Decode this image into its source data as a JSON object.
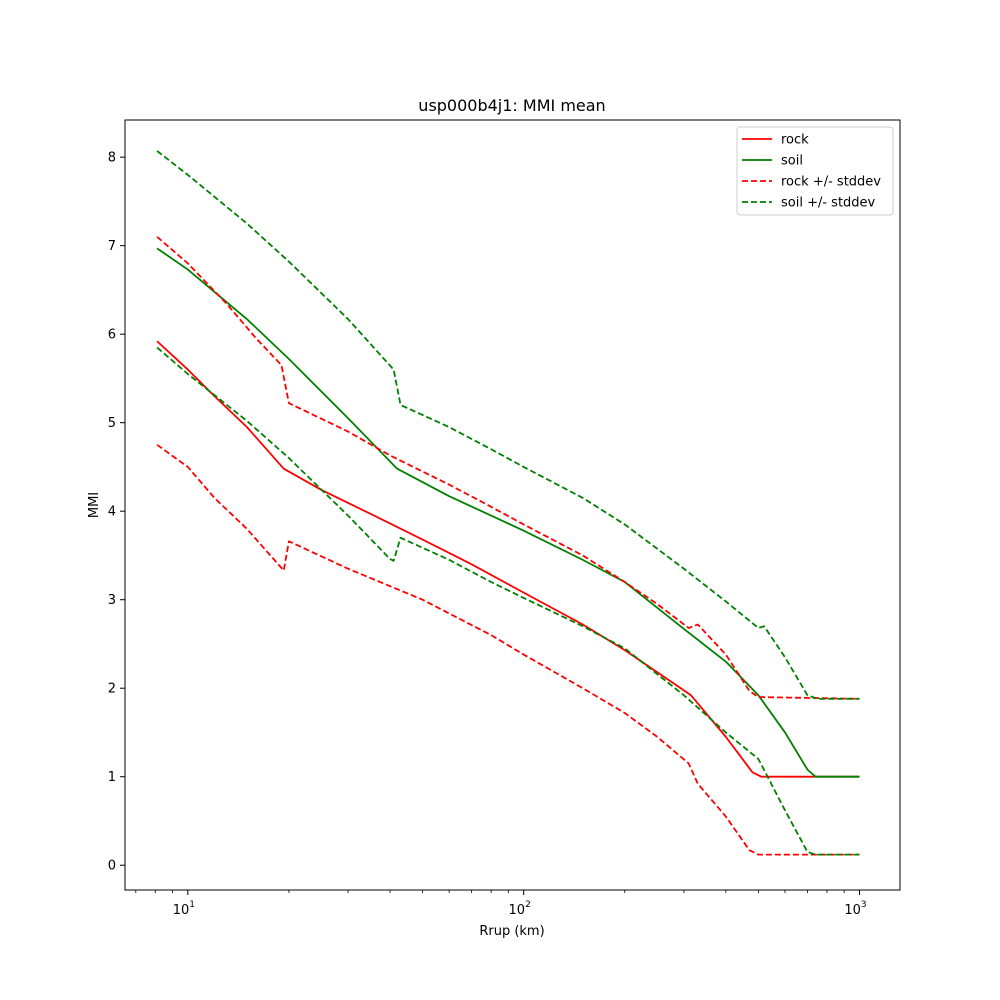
{
  "chart_data": {
    "type": "line",
    "title": "usp000b4j1: MMI mean",
    "xlabel": "Rrup (km)",
    "ylabel": "MMI",
    "xscale": "log",
    "xlim": [
      6.5,
      1320
    ],
    "ylim": [
      -0.28,
      8.42
    ],
    "x_ticks": [
      {
        "value": 10,
        "base": "10",
        "exp": "1"
      },
      {
        "value": 100,
        "base": "10",
        "exp": "2"
      },
      {
        "value": 1000,
        "base": "10",
        "exp": "3"
      }
    ],
    "y_ticks": [
      "0",
      "1",
      "2",
      "3",
      "4",
      "5",
      "6",
      "7",
      "8"
    ],
    "grid": false,
    "legend_position": "top-right",
    "series": [
      {
        "name": "rock",
        "color": "#ff0000",
        "style": "solid",
        "points": [
          [
            8.1,
            5.92
          ],
          [
            10,
            5.6
          ],
          [
            12,
            5.3
          ],
          [
            15,
            4.95
          ],
          [
            19.3,
            4.48
          ],
          [
            25,
            4.24
          ],
          [
            35,
            3.97
          ],
          [
            50,
            3.68
          ],
          [
            70,
            3.4
          ],
          [
            100,
            3.08
          ],
          [
            150,
            2.72
          ],
          [
            200,
            2.43
          ],
          [
            250,
            2.18
          ],
          [
            315,
            1.92
          ],
          [
            400,
            1.45
          ],
          [
            480,
            1.05
          ],
          [
            510,
            1.0
          ],
          [
            1000,
            1.0
          ]
        ]
      },
      {
        "name": "soil",
        "color": "#008000",
        "style": "solid",
        "points": [
          [
            8.1,
            6.97
          ],
          [
            10,
            6.73
          ],
          [
            15,
            6.17
          ],
          [
            20,
            5.72
          ],
          [
            30,
            5.05
          ],
          [
            42,
            4.48
          ],
          [
            60,
            4.17
          ],
          [
            80,
            3.95
          ],
          [
            100,
            3.78
          ],
          [
            150,
            3.45
          ],
          [
            200,
            3.2
          ],
          [
            300,
            2.67
          ],
          [
            400,
            2.3
          ],
          [
            500,
            1.92
          ],
          [
            600,
            1.5
          ],
          [
            700,
            1.08
          ],
          [
            740,
            1.0
          ],
          [
            1000,
            1.0
          ]
        ]
      },
      {
        "name": "rock +/- stddev",
        "color": "#ff0000",
        "style": "dashed",
        "points": [
          [
            8.1,
            7.1
          ],
          [
            10,
            6.8
          ],
          [
            13,
            6.35
          ],
          [
            16,
            5.95
          ],
          [
            19,
            5.65
          ],
          [
            20,
            5.22
          ],
          [
            30,
            4.9
          ],
          [
            40,
            4.63
          ],
          [
            60,
            4.3
          ],
          [
            80,
            4.05
          ],
          [
            100,
            3.85
          ],
          [
            150,
            3.5
          ],
          [
            200,
            3.2
          ],
          [
            250,
            2.95
          ],
          [
            310,
            2.68
          ],
          [
            330,
            2.72
          ],
          [
            400,
            2.38
          ],
          [
            470,
            1.97
          ],
          [
            500,
            1.9
          ],
          [
            1000,
            1.88
          ]
        ]
      },
      {
        "name": "rock +/- stddev",
        "color": "#ff0000",
        "style": "dashed",
        "points": [
          [
            8.1,
            4.75
          ],
          [
            10,
            4.5
          ],
          [
            12,
            4.15
          ],
          [
            15,
            3.8
          ],
          [
            19.3,
            3.33
          ],
          [
            20,
            3.66
          ],
          [
            30,
            3.35
          ],
          [
            50,
            3.0
          ],
          [
            80,
            2.6
          ],
          [
            100,
            2.38
          ],
          [
            150,
            2.0
          ],
          [
            200,
            1.72
          ],
          [
            250,
            1.45
          ],
          [
            310,
            1.15
          ],
          [
            330,
            0.92
          ],
          [
            400,
            0.55
          ],
          [
            470,
            0.17
          ],
          [
            500,
            0.12
          ],
          [
            1000,
            0.12
          ]
        ]
      },
      {
        "name": "soil +/- stddev",
        "color": "#008000",
        "style": "dashed",
        "points": [
          [
            8.1,
            8.07
          ],
          [
            10,
            7.8
          ],
          [
            15,
            7.25
          ],
          [
            20,
            6.82
          ],
          [
            30,
            6.17
          ],
          [
            41,
            5.6
          ],
          [
            43,
            5.2
          ],
          [
            60,
            4.95
          ],
          [
            80,
            4.7
          ],
          [
            100,
            4.5
          ],
          [
            150,
            4.15
          ],
          [
            200,
            3.85
          ],
          [
            300,
            3.35
          ],
          [
            400,
            2.98
          ],
          [
            500,
            2.68
          ],
          [
            520,
            2.7
          ],
          [
            600,
            2.35
          ],
          [
            700,
            1.92
          ],
          [
            750,
            1.88
          ],
          [
            1000,
            1.88
          ]
        ]
      },
      {
        "name": "soil +/- stddev",
        "color": "#008000",
        "style": "dashed",
        "points": [
          [
            8.1,
            5.85
          ],
          [
            10,
            5.55
          ],
          [
            15,
            5.02
          ],
          [
            20,
            4.6
          ],
          [
            30,
            3.95
          ],
          [
            40,
            3.46
          ],
          [
            41,
            3.44
          ],
          [
            43,
            3.7
          ],
          [
            60,
            3.45
          ],
          [
            80,
            3.2
          ],
          [
            100,
            3.02
          ],
          [
            150,
            2.7
          ],
          [
            200,
            2.45
          ],
          [
            300,
            1.92
          ],
          [
            400,
            1.5
          ],
          [
            500,
            1.2
          ],
          [
            600,
            0.62
          ],
          [
            700,
            0.15
          ],
          [
            740,
            0.12
          ],
          [
            1000,
            0.12
          ]
        ]
      }
    ],
    "legend": [
      {
        "label": "rock",
        "color": "#ff0000",
        "style": "solid"
      },
      {
        "label": "soil",
        "color": "#008000",
        "style": "solid"
      },
      {
        "label": "rock +/- stddev",
        "color": "#ff0000",
        "style": "dashed"
      },
      {
        "label": "soil +/- stddev",
        "color": "#008000",
        "style": "dashed"
      }
    ]
  }
}
